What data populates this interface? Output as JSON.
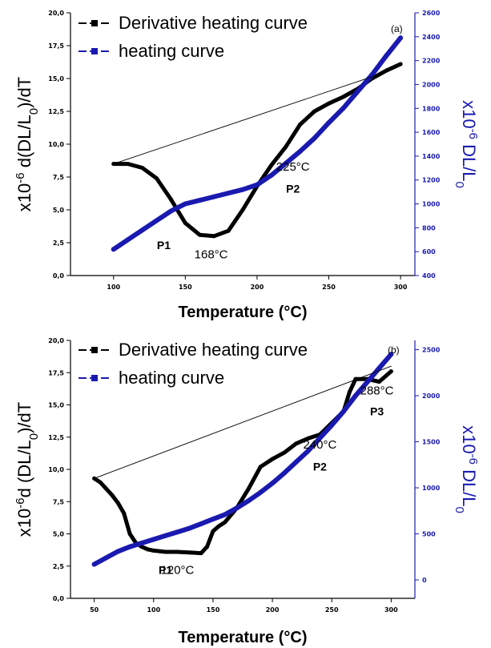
{
  "chart_data": [
    {
      "type": "line",
      "panel_label": "(a)",
      "xlabel": "Temperature (°C)",
      "ylabel_left": "x10-6 d(DL/L0)/dT",
      "ylabel_right": "x10-6 DL/L0",
      "xlim": [
        70,
        310
      ],
      "ylim_left": [
        0,
        20
      ],
      "ylim_right": [
        400,
        2600
      ],
      "xticks": [
        "100",
        "150",
        "200",
        "250",
        "300"
      ],
      "yticks_left": [
        "0,0",
        "2,5",
        "5,0",
        "7,5",
        "10,0",
        "12,5",
        "15,0",
        "17,5",
        "20,0"
      ],
      "yticks_right": [
        "400",
        "600",
        "800",
        "1000",
        "1200",
        "1400",
        "1600",
        "1800",
        "2000",
        "2200",
        "2400",
        "2600"
      ],
      "legend": [
        "Derivative heating curve",
        "heating curve"
      ],
      "series": [
        {
          "name": "Derivative heating curve",
          "axis": "left",
          "color": "#000000",
          "x": [
            100,
            110,
            120,
            130,
            140,
            150,
            160,
            170,
            180,
            190,
            200,
            210,
            220,
            230,
            240,
            250,
            260,
            270,
            280,
            290,
            300
          ],
          "y": [
            8.5,
            8.5,
            8.2,
            7.4,
            5.8,
            4.0,
            3.1,
            3.0,
            3.4,
            5.0,
            6.8,
            8.4,
            9.8,
            11.5,
            12.5,
            13.1,
            13.6,
            14.2,
            15.0,
            15.6,
            16.1
          ]
        },
        {
          "name": "heating curve",
          "axis": "right",
          "color": "#1a1ab0",
          "x": [
            100,
            110,
            120,
            130,
            140,
            150,
            160,
            170,
            180,
            190,
            200,
            210,
            220,
            230,
            240,
            250,
            260,
            270,
            280,
            290,
            300
          ],
          "y": [
            620,
            700,
            780,
            860,
            940,
            1000,
            1030,
            1060,
            1090,
            1120,
            1160,
            1240,
            1340,
            1440,
            1550,
            1680,
            1800,
            1940,
            2080,
            2240,
            2390
          ]
        },
        {
          "axis": "left",
          "color": "#000000",
          "x": [
            100,
            290
          ],
          "y": [
            8.5,
            15.5
          ]
        }
      ],
      "annotations": [
        {
          "label": "225°C",
          "x": 225,
          "y": 8.0
        },
        {
          "label": "P2",
          "x": 225,
          "y": 6.3
        },
        {
          "label": "P1",
          "x": 135,
          "y": 2.0
        },
        {
          "label": "168°C",
          "x": 168,
          "y": 1.3
        }
      ]
    },
    {
      "type": "line",
      "panel_label": "(b)",
      "xlabel": "Temperature (°C)",
      "ylabel_left": "x10-6d (DL/L0)/dT",
      "ylabel_right": "x10-6 DL/L0",
      "xlim": [
        30,
        320
      ],
      "ylim_left": [
        0,
        20
      ],
      "ylim_right": [
        -200,
        2600
      ],
      "xticks": [
        "50",
        "100",
        "150",
        "200",
        "250",
        "300"
      ],
      "yticks_left": [
        "0,0",
        "2,5",
        "5,0",
        "7,5",
        "10,0",
        "12,5",
        "15,0",
        "17,5",
        "20,0"
      ],
      "yticks_right": [
        "0",
        "500",
        "1000",
        "1500",
        "2000",
        "2500"
      ],
      "legend": [
        "Derivative heating curve",
        "heating curve"
      ],
      "series": [
        {
          "name": "Derivative heating curve",
          "axis": "left",
          "color": "#000000",
          "x": [
            50,
            55,
            60,
            65,
            70,
            75,
            80,
            85,
            90,
            95,
            100,
            110,
            120,
            130,
            140,
            145,
            150,
            155,
            160,
            170,
            180,
            190,
            200,
            210,
            220,
            230,
            240,
            250,
            260,
            265,
            270,
            280,
            290,
            300
          ],
          "y": [
            9.3,
            9.0,
            8.5,
            8.0,
            7.4,
            6.6,
            5.0,
            4.3,
            4.0,
            3.8,
            3.7,
            3.6,
            3.6,
            3.55,
            3.5,
            4.0,
            5.2,
            5.6,
            5.9,
            7.0,
            8.5,
            10.2,
            10.8,
            11.3,
            12.0,
            12.4,
            12.7,
            13.6,
            14.5,
            16.0,
            17.0,
            17.0,
            16.8,
            17.6
          ]
        },
        {
          "name": "heating curve",
          "axis": "right",
          "color": "#1a1ab0",
          "x": [
            50,
            60,
            70,
            80,
            90,
            100,
            110,
            120,
            130,
            140,
            150,
            160,
            170,
            180,
            190,
            200,
            210,
            220,
            230,
            240,
            250,
            260,
            270,
            280,
            290,
            300
          ],
          "y": [
            170,
            240,
            310,
            360,
            400,
            440,
            480,
            520,
            560,
            610,
            660,
            710,
            780,
            860,
            950,
            1050,
            1160,
            1280,
            1400,
            1540,
            1680,
            1830,
            2000,
            2150,
            2300,
            2450
          ]
        },
        {
          "axis": "left",
          "color": "#000000",
          "x": [
            50,
            300
          ],
          "y": [
            9.3,
            18.0
          ]
        }
      ],
      "annotations": [
        {
          "label": "288°C",
          "x": 288,
          "y": 15.8
        },
        {
          "label": "P3",
          "x": 288,
          "y": 14.2
        },
        {
          "label": "240°C",
          "x": 240,
          "y": 11.6
        },
        {
          "label": "P2",
          "x": 240,
          "y": 9.9
        },
        {
          "label": "P1",
          "x": 110,
          "y": 1.9
        },
        {
          "label": "120°C",
          "x": 120,
          "y": 1.9
        }
      ]
    }
  ]
}
